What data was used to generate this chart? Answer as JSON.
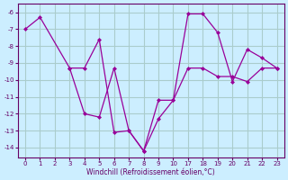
{
  "xlabel": "Windchill (Refroidissement éolien,°C)",
  "bg_color": "#cceeff",
  "grid_color": "#aacccc",
  "line_color": "#990099",
  "xtick_labels": [
    "0",
    "1",
    "2",
    "3",
    "4",
    "5",
    "6",
    "7",
    "8",
    "9",
    "10",
    "17",
    "18",
    "19",
    "20",
    "21",
    "22",
    "23"
  ],
  "xtick_positions": [
    0,
    1,
    2,
    3,
    4,
    5,
    6,
    7,
    8,
    9,
    10,
    11,
    12,
    13,
    14,
    15,
    16,
    17
  ],
  "line1_xi": [
    0,
    1,
    3,
    4,
    5,
    6,
    7,
    8,
    9,
    10,
    11,
    12,
    13,
    14,
    15,
    16,
    17
  ],
  "line1_y": [
    -7,
    -6.3,
    -9.3,
    -9.3,
    -7.6,
    -13.1,
    -13.0,
    -14.2,
    -12.3,
    -11.2,
    -6.1,
    -6.1,
    -7.2,
    -10.1,
    -8.2,
    -8.7,
    -9.3
  ],
  "line2_xi": [
    3,
    4,
    5,
    6,
    7,
    8,
    9,
    10,
    11,
    12,
    13,
    14,
    15,
    16,
    17
  ],
  "line2_y": [
    -9.3,
    -12.0,
    -12.2,
    -9.3,
    -13.0,
    -14.2,
    -11.2,
    -11.2,
    -9.3,
    -9.3,
    -9.8,
    -9.8,
    -10.1,
    -9.3,
    -9.3
  ],
  "yticks": [
    -14,
    -13,
    -12,
    -11,
    -10,
    -9,
    -8,
    -7,
    -6
  ],
  "ylim": [
    -14.6,
    -5.5
  ],
  "xlim": [
    -0.5,
    17.5
  ]
}
